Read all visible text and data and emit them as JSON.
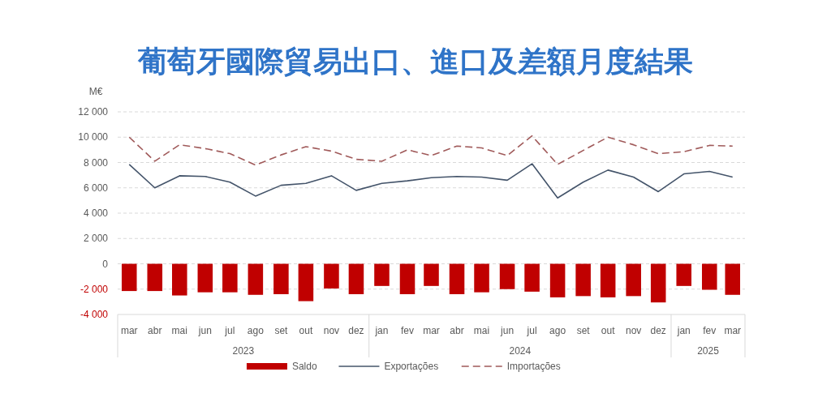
{
  "chart_data": {
    "type": "bar",
    "title": "葡萄牙國際貿易出口、進口及差額月度結果",
    "ylabel": "M€",
    "x": [
      "2023-03",
      "2023-04",
      "2023-05",
      "2023-06",
      "2023-07",
      "2023-08",
      "2023-09",
      "2023-10",
      "2023-11",
      "2023-12",
      "2024-01",
      "2024-02",
      "2024-03",
      "2024-04",
      "2024-05",
      "2024-06",
      "2024-07",
      "2024-08",
      "2024-09",
      "2024-10",
      "2024-11",
      "2024-12",
      "2025-01",
      "2025-02",
      "2025-03"
    ],
    "xlim": [
      "2023-02-15",
      "2025-03-16"
    ],
    "xticks": [
      {
        "value": "2023-03",
        "label": "mar"
      },
      {
        "value": "2023-04",
        "label": "abr"
      },
      {
        "value": "2023-05",
        "label": "mai"
      },
      {
        "value": "2023-06",
        "label": "jun"
      },
      {
        "value": "2023-07",
        "label": "jul"
      },
      {
        "value": "2023-08",
        "label": "ago"
      },
      {
        "value": "2023-09",
        "label": "set"
      },
      {
        "value": "2023-10",
        "label": "out"
      },
      {
        "value": "2023-11",
        "label": "nov"
      },
      {
        "value": "2023-12",
        "label": "dez"
      },
      {
        "value": "2024-01",
        "label": "jan"
      },
      {
        "value": "2024-02",
        "label": "fev"
      },
      {
        "value": "2024-03",
        "label": "mar"
      },
      {
        "value": "2024-04",
        "label": "abr"
      },
      {
        "value": "2024-05",
        "label": "mai"
      },
      {
        "value": "2024-06",
        "label": "jun"
      },
      {
        "value": "2024-07",
        "label": "jul"
      },
      {
        "value": "2024-08",
        "label": "ago"
      },
      {
        "value": "2024-09",
        "label": "set"
      },
      {
        "value": "2024-10",
        "label": "out"
      },
      {
        "value": "2024-11",
        "label": "nov"
      },
      {
        "value": "2024-12",
        "label": "dez"
      },
      {
        "value": "2025-01",
        "label": "jan"
      },
      {
        "value": "2025-02",
        "label": "fev"
      },
      {
        "value": "2025-03",
        "label": "mar"
      }
    ],
    "annotations": [
      "2023",
      "2024",
      "2025"
    ],
    "ylim": [
      -4000,
      12000
    ],
    "yticks": [
      {
        "value": -4000,
        "label": "-4 000"
      },
      {
        "value": -2000,
        "label": "-2 000"
      },
      0,
      {
        "value": 2000,
        "label": "2 000"
      },
      {
        "value": 4000,
        "label": "4 000"
      },
      {
        "value": 6000,
        "label": "6 000"
      },
      {
        "value": 8000,
        "label": "8 000"
      },
      {
        "value": 10000,
        "label": "10 000"
      },
      {
        "value": 12000,
        "label": "12 000"
      }
    ],
    "grid": "y",
    "legend": "bottom",
    "series": [
      {
        "name": "Saldo",
        "color": "#c00000",
        "values": [
          -2150,
          -2150,
          -2500,
          -2250,
          -2250,
          -2450,
          -2400,
          -2950,
          -1950,
          -2400,
          -1750,
          -2400,
          -1750,
          -2400,
          -2250,
          -2000,
          -2200,
          -2650,
          -2550,
          -2650,
          -2550,
          -3050,
          -1750,
          -2050,
          -2450
        ]
      },
      {
        "name": "Exportações",
        "type": "line",
        "line_style": "solid",
        "color": "#44546a",
        "values": [
          7850,
          6000,
          6950,
          6900,
          6450,
          5350,
          6200,
          6350,
          6950,
          5800,
          6350,
          6550,
          6800,
          6900,
          6850,
          6600,
          7900,
          5200,
          6450,
          7400,
          6850,
          5700,
          7100,
          7300,
          6850
        ]
      },
      {
        "name": "Importações",
        "type": "line",
        "line_style": "dashed",
        "color": "#a05a5a",
        "values": [
          10000,
          8100,
          9400,
          9100,
          8700,
          7800,
          8600,
          9250,
          8900,
          8250,
          8100,
          9000,
          8550,
          9300,
          9150,
          8550,
          10100,
          7850,
          8950,
          10000,
          9400,
          8700,
          8850,
          9350,
          9300
        ]
      }
    ]
  }
}
